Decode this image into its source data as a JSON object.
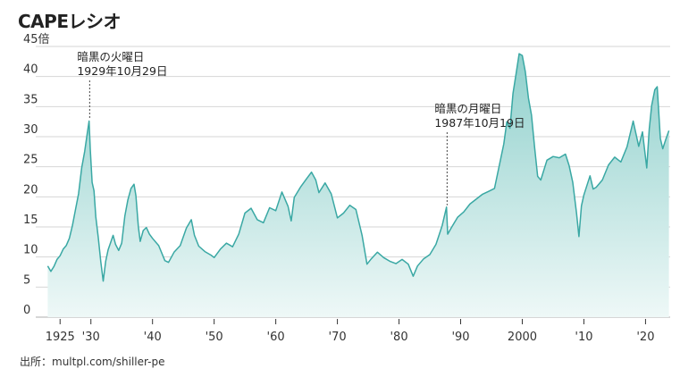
{
  "title": "CAPEレシオ",
  "source": "出所：multpl.com/shiller-pe",
  "chart_data": {
    "type": "area",
    "title": "CAPEレシオ",
    "ylabel": "",
    "ylim": [
      0,
      45
    ],
    "yticks": [
      0,
      5,
      10,
      15,
      20,
      25,
      30,
      35,
      40
    ],
    "ytick_top_label": "45倍",
    "xlim": [
      1922.5,
      2024
    ],
    "xticks": [
      {
        "value": 1925,
        "label": "1925"
      },
      {
        "value": 1930,
        "label": "'30"
      },
      {
        "value": 1940,
        "label": "'40"
      },
      {
        "value": 1950,
        "label": "'50"
      },
      {
        "value": 1960,
        "label": "'60"
      },
      {
        "value": 1970,
        "label": "'70"
      },
      {
        "value": 1980,
        "label": "'80"
      },
      {
        "value": 1990,
        "label": "'90"
      },
      {
        "value": 2000,
        "label": "2000"
      },
      {
        "value": 2010,
        "label": "'10"
      },
      {
        "value": 2020,
        "label": "'20"
      }
    ],
    "grid": true,
    "line_color": "#3aa8a4",
    "fill_color_top": "#8fd0cc",
    "fill_color_bottom": "#eef8f7",
    "annotations": [
      {
        "x": 1929.8,
        "y": 32.6,
        "line1": "暗黒の火曜日",
        "line2": "1929年10月29日"
      },
      {
        "x": 1987.8,
        "y": 18.3,
        "line1": "暗黒の月曜日",
        "line2": "1987年10月19日"
      }
    ],
    "series": [
      {
        "name": "CAPE",
        "x": [
          1923.0,
          1923.5,
          1924.0,
          1924.5,
          1925.0,
          1925.5,
          1926.0,
          1926.5,
          1927.0,
          1927.5,
          1928.0,
          1928.5,
          1929.0,
          1929.4,
          1929.7,
          1929.9,
          1930.2,
          1930.5,
          1930.8,
          1931.2,
          1931.6,
          1932.0,
          1932.4,
          1932.8,
          1933.2,
          1933.6,
          1934.0,
          1934.5,
          1935.0,
          1935.5,
          1936.0,
          1936.5,
          1937.0,
          1937.3,
          1937.7,
          1938.0,
          1938.5,
          1939.0,
          1939.5,
          1940.0,
          1941.0,
          1942.0,
          1942.6,
          1943.5,
          1944.5,
          1945.5,
          1946.3,
          1946.8,
          1947.5,
          1948.5,
          1949.5,
          1950.0,
          1951.0,
          1952.0,
          1953.0,
          1954.0,
          1955.0,
          1956.0,
          1957.0,
          1958.0,
          1959.0,
          1960.0,
          1961.0,
          1962.0,
          1962.5,
          1963.0,
          1964.0,
          1965.0,
          1965.8,
          1966.5,
          1967.0,
          1968.0,
          1969.0,
          1970.0,
          1971.0,
          1972.0,
          1973.0,
          1974.0,
          1974.8,
          1975.5,
          1976.5,
          1977.5,
          1978.5,
          1979.5,
          1980.5,
          1981.5,
          1982.3,
          1983.0,
          1984.0,
          1985.0,
          1986.0,
          1987.0,
          1987.7,
          1987.9,
          1988.5,
          1989.5,
          1990.5,
          1991.5,
          1992.5,
          1993.5,
          1994.5,
          1995.5,
          1996.5,
          1997.0,
          1997.5,
          1998.0,
          1998.5,
          1999.0,
          1999.5,
          2000.0,
          2000.5,
          2001.0,
          2001.5,
          2002.0,
          2002.5,
          2003.0,
          2004.0,
          2005.0,
          2006.0,
          2007.0,
          2007.6,
          2008.2,
          2008.8,
          2009.2,
          2009.6,
          2010.0,
          2011.0,
          2011.5,
          2012.0,
          2013.0,
          2014.0,
          2015.0,
          2016.0,
          2017.0,
          2018.0,
          2018.9,
          2019.5,
          2020.2,
          2020.6,
          2021.0,
          2021.5,
          2021.9,
          2022.4,
          2022.8,
          2023.3,
          2023.8
        ],
        "values": [
          8.5,
          7.6,
          8.4,
          9.6,
          10.2,
          11.3,
          11.9,
          13.1,
          15.2,
          17.9,
          20.5,
          24.8,
          27.6,
          30.5,
          32.6,
          28.0,
          22.4,
          21.0,
          16.7,
          13.2,
          9.2,
          6.0,
          9.3,
          11.2,
          12.4,
          13.6,
          12.1,
          11.1,
          12.3,
          16.8,
          19.5,
          21.4,
          22.1,
          20.2,
          15.1,
          12.6,
          14.4,
          14.9,
          13.8,
          13.1,
          11.9,
          9.4,
          9.1,
          10.8,
          11.9,
          14.8,
          16.2,
          13.6,
          11.8,
          10.9,
          10.3,
          9.9,
          11.3,
          12.3,
          11.7,
          13.8,
          17.3,
          18.1,
          16.2,
          15.7,
          18.2,
          17.7,
          20.8,
          18.4,
          16.0,
          19.9,
          21.6,
          23.0,
          24.1,
          22.8,
          20.7,
          22.3,
          20.5,
          16.5,
          17.3,
          18.6,
          17.9,
          13.6,
          8.8,
          9.7,
          10.8,
          9.9,
          9.3,
          8.9,
          9.6,
          8.8,
          6.8,
          8.5,
          9.7,
          10.4,
          12.1,
          15.2,
          18.3,
          13.8,
          14.9,
          16.6,
          17.5,
          18.8,
          19.6,
          20.4,
          20.9,
          21.4,
          26.3,
          28.8,
          32.5,
          31.4,
          37.2,
          40.5,
          43.8,
          43.5,
          40.8,
          36.4,
          33.6,
          28.2,
          23.4,
          22.8,
          26.1,
          26.7,
          26.5,
          27.1,
          25.2,
          22.4,
          17.3,
          13.4,
          18.5,
          20.3,
          23.5,
          21.3,
          21.6,
          22.8,
          25.3,
          26.6,
          25.8,
          28.3,
          32.6,
          28.4,
          30.8,
          24.8,
          31.3,
          35.2,
          37.8,
          38.3,
          29.7,
          28.0,
          29.6,
          31.0
        ]
      }
    ]
  }
}
